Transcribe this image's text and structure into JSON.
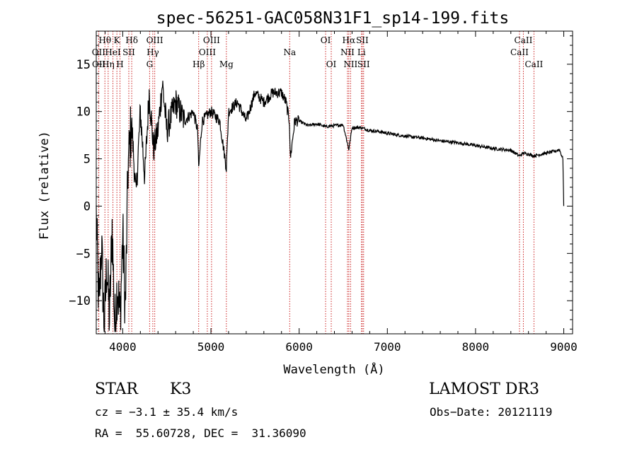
{
  "chart_data": {
    "type": "line",
    "title": "spec-56251-GAC058N31F1_sp14-199.fits",
    "xlabel": "Wavelength (Å)",
    "ylabel": "Flux (relative)",
    "xlim": [
      3700,
      9100
    ],
    "ylim": [
      -13.5,
      18.5
    ],
    "xticks": [
      4000,
      5000,
      6000,
      7000,
      8000,
      9000
    ],
    "xtick_labels": [
      "4000",
      "5000",
      "6000",
      "7000",
      "8000",
      "9000"
    ],
    "yticks": [
      -10,
      -5,
      0,
      5,
      10,
      15
    ],
    "ytick_labels": [
      "−10",
      "−5",
      "0",
      "5",
      "10",
      "15"
    ],
    "series": [
      {
        "name": "flux",
        "x": [
          3700,
          3730,
          3760,
          3790,
          3820,
          3850,
          3880,
          3910,
          3940,
          3970,
          4000,
          4030,
          4060,
          4100,
          4150,
          4200,
          4250,
          4300,
          4350,
          4400,
          4450,
          4500,
          4600,
          4700,
          4800,
          4850,
          4861,
          4900,
          5000,
          5100,
          5175,
          5200,
          5300,
          5400,
          5500,
          5600,
          5700,
          5800,
          5850,
          5890,
          5900,
          5950,
          6000,
          6100,
          6200,
          6300,
          6400,
          6500,
          6563,
          6600,
          6700,
          6800,
          6900,
          7000,
          7200,
          7400,
          7600,
          7800,
          8000,
          8200,
          8400,
          8498,
          8542,
          8600,
          8662,
          8700,
          8800,
          8900,
          8950,
          8990,
          9000
        ],
        "y": [
          -1,
          -11,
          -4,
          -13,
          -6,
          -12,
          -2,
          -13,
          -8,
          -12,
          -3,
          -11,
          4,
          9,
          1,
          10,
          3,
          12,
          6,
          8,
          13,
          8,
          11,
          9,
          10,
          8,
          4,
          9,
          10,
          9,
          4,
          10,
          11,
          9,
          12,
          11,
          12,
          12,
          11,
          9,
          5,
          9,
          9,
          8.5,
          8.7,
          8.4,
          8.5,
          8.6,
          6,
          8.3,
          8.3,
          8.0,
          7.9,
          7.7,
          7.4,
          7.2,
          6.9,
          6.7,
          6.4,
          6.1,
          5.9,
          5.3,
          5.6,
          5.5,
          5.3,
          5.4,
          5.6,
          5.8,
          6.0,
          5.0,
          0
        ]
      }
    ],
    "lines": [
      {
        "name": "Hθ",
        "wave": 3798,
        "row": 0
      },
      {
        "name": "OII",
        "wave": 3727,
        "row": 1
      },
      {
        "name": "OII",
        "wave": 3729,
        "row": 2
      },
      {
        "name": "Hη",
        "wave": 3835,
        "row": 2
      },
      {
        "name": "HeI",
        "wave": 3889,
        "row": 1
      },
      {
        "name": "K",
        "wave": 3934,
        "row": 0
      },
      {
        "name": "H",
        "wave": 3969,
        "row": 2
      },
      {
        "name": "SII",
        "wave": 4069,
        "row": 1
      },
      {
        "name": "Hδ",
        "wave": 4102,
        "row": 0
      },
      {
        "name": "OIII",
        "wave": 4363,
        "row": 0
      },
      {
        "name": "Hγ",
        "wave": 4341,
        "row": 1
      },
      {
        "name": "G",
        "wave": 4305,
        "row": 2
      },
      {
        "name": "Hβ",
        "wave": 4861,
        "row": 2
      },
      {
        "name": "OIII",
        "wave": 5007,
        "row": 0
      },
      {
        "name": "OIII",
        "wave": 4959,
        "row": 1
      },
      {
        "name": "Mg",
        "wave": 5175,
        "row": 2
      },
      {
        "name": "Na",
        "wave": 5893,
        "row": 1
      },
      {
        "name": "OI",
        "wave": 6300,
        "row": 0
      },
      {
        "name": "OI",
        "wave": 6364,
        "row": 2
      },
      {
        "name": "Hα",
        "wave": 6563,
        "row": 0
      },
      {
        "name": "NII",
        "wave": 6548,
        "row": 1
      },
      {
        "name": "NII",
        "wave": 6583,
        "row": 2
      },
      {
        "name": "SII",
        "wave": 6716,
        "row": 0
      },
      {
        "name": "SII",
        "wave": 6731,
        "row": 2
      },
      {
        "name": "Li",
        "wave": 6707,
        "row": 1
      },
      {
        "name": "CaII",
        "wave": 8542,
        "row": 0
      },
      {
        "name": "CaII",
        "wave": 8498,
        "row": 1
      },
      {
        "name": "CaII",
        "wave": 8662,
        "row": 2
      }
    ],
    "line_color": "#cc2222",
    "spectrum_color": "#000000"
  },
  "info": {
    "class_label": "STAR",
    "subclass": "K3",
    "survey": "LAMOST DR3",
    "cz": "cz = −3.1 ± 35.4 km/s",
    "obs_date": "Obs−Date: 20121119",
    "coords": "RA =  55.60728, DEC =  31.36090"
  }
}
